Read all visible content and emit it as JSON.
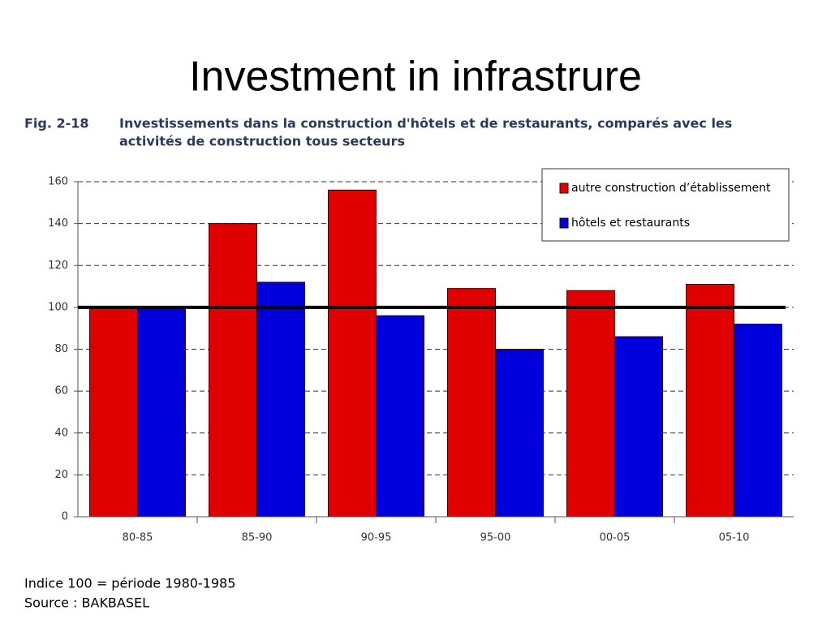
{
  "slide_title": "Investment in infrastrure",
  "chart_data": {
    "type": "bar",
    "figure_label": "Fig. 2-18",
    "title": [
      "Investissements dans la construction d'hôtels et de restaurants, comparés avec les",
      "activités de construction tous secteurs"
    ],
    "categories": [
      "80-85",
      "85-90",
      "90-95",
      "95-00",
      "00-05",
      "05-10"
    ],
    "series": [
      {
        "name": "autre construction d’établissement",
        "color": "#e00000",
        "values": [
          100,
          140,
          156,
          109,
          108,
          111
        ]
      },
      {
        "name": "hôtels et restaurants",
        "color": "#0000dd",
        "values": [
          100,
          112,
          96,
          80,
          86,
          92
        ]
      }
    ],
    "ylim": [
      0,
      160
    ],
    "yticks": [
      0,
      20,
      40,
      60,
      80,
      100,
      120,
      140,
      160
    ],
    "grid": true,
    "reference_line": 100,
    "legend": "top-right",
    "notes": [
      "Indice 100 = période 1980-1985",
      "Source : BAKBASEL"
    ]
  }
}
